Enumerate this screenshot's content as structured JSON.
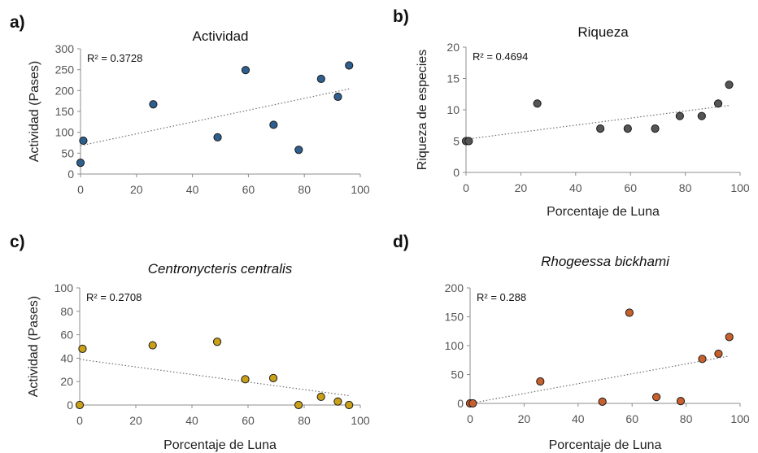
{
  "chart_data": [
    {
      "type": "scatter",
      "letter": "a)",
      "title": "Actividad",
      "title_italic": false,
      "xlabel": "",
      "ylabel": "Actividad (Pases)",
      "xlim": [
        0,
        100
      ],
      "ylim": [
        0,
        300
      ],
      "xticks": [
        0,
        20,
        40,
        60,
        80,
        100
      ],
      "yticks": [
        0,
        50,
        100,
        150,
        200,
        250,
        300
      ],
      "r2_label": "R² = 0.3728",
      "marker_color": "#2e5f8f",
      "points": [
        {
          "x": 0,
          "y": 27
        },
        {
          "x": 1,
          "y": 80
        },
        {
          "x": 26,
          "y": 167
        },
        {
          "x": 49,
          "y": 88
        },
        {
          "x": 59,
          "y": 249
        },
        {
          "x": 69,
          "y": 118
        },
        {
          "x": 78,
          "y": 58
        },
        {
          "x": 86,
          "y": 228
        },
        {
          "x": 92,
          "y": 185
        },
        {
          "x": 96,
          "y": 260
        }
      ],
      "trendline": {
        "x": [
          0,
          96
        ],
        "y": [
          68,
          204
        ]
      }
    },
    {
      "type": "scatter",
      "letter": "b)",
      "title": "Riqueza",
      "title_italic": false,
      "xlabel": "Porcentaje de Luna",
      "ylabel": "Riqueza de especies",
      "xlim": [
        0,
        100
      ],
      "ylim": [
        0,
        20
      ],
      "xticks": [
        0,
        20,
        40,
        60,
        80,
        100
      ],
      "yticks": [
        0,
        5,
        10,
        15,
        20
      ],
      "r2_label": "R² = 0.4694",
      "marker_color": "#555555",
      "points": [
        {
          "x": 0,
          "y": 5
        },
        {
          "x": 1,
          "y": 5
        },
        {
          "x": 26,
          "y": 11
        },
        {
          "x": 49,
          "y": 7
        },
        {
          "x": 59,
          "y": 7
        },
        {
          "x": 69,
          "y": 7
        },
        {
          "x": 78,
          "y": 9
        },
        {
          "x": 86,
          "y": 9
        },
        {
          "x": 92,
          "y": 11
        },
        {
          "x": 96,
          "y": 14
        }
      ],
      "trendline": {
        "x": [
          0,
          96
        ],
        "y": [
          5.3,
          10.7
        ]
      }
    },
    {
      "type": "scatter",
      "letter": "c)",
      "title": "Centronycteris centralis",
      "title_italic": true,
      "xlabel": "Porcentaje de Luna",
      "ylabel": "Actividad (Pases)",
      "xlim": [
        0,
        100
      ],
      "ylim": [
        0,
        100
      ],
      "xticks": [
        0,
        20,
        40,
        60,
        80,
        100
      ],
      "yticks": [
        0,
        20,
        40,
        60,
        80,
        100
      ],
      "r2_label": "R² = 0.2708",
      "marker_color": "#c9a018",
      "points": [
        {
          "x": 0,
          "y": 0
        },
        {
          "x": 1,
          "y": 48
        },
        {
          "x": 26,
          "y": 51
        },
        {
          "x": 49,
          "y": 54
        },
        {
          "x": 59,
          "y": 22
        },
        {
          "x": 69,
          "y": 23
        },
        {
          "x": 78,
          "y": 0
        },
        {
          "x": 86,
          "y": 7
        },
        {
          "x": 92,
          "y": 3
        },
        {
          "x": 96,
          "y": 0
        }
      ],
      "trendline": {
        "x": [
          0,
          96
        ],
        "y": [
          39,
          8
        ]
      }
    },
    {
      "type": "scatter",
      "letter": "d)",
      "title": "Rhogeessa bickhami",
      "title_italic": true,
      "xlabel": "Porcentaje de Luna",
      "ylabel": "",
      "xlim": [
        0,
        100
      ],
      "ylim": [
        0,
        200
      ],
      "xticks": [
        0,
        20,
        40,
        60,
        80,
        100
      ],
      "yticks": [
        0,
        50,
        100,
        150,
        200
      ],
      "r2_label": "R² = 0.288",
      "marker_color": "#c8602e",
      "points": [
        {
          "x": 0,
          "y": 0
        },
        {
          "x": 1,
          "y": 0
        },
        {
          "x": 26,
          "y": 38
        },
        {
          "x": 49,
          "y": 3
        },
        {
          "x": 59,
          "y": 157
        },
        {
          "x": 69,
          "y": 11
        },
        {
          "x": 78,
          "y": 4
        },
        {
          "x": 86,
          "y": 77
        },
        {
          "x": 92,
          "y": 86
        },
        {
          "x": 96,
          "y": 115
        }
      ],
      "trendline": {
        "x": [
          0,
          96
        ],
        "y": [
          0,
          82
        ]
      }
    }
  ]
}
